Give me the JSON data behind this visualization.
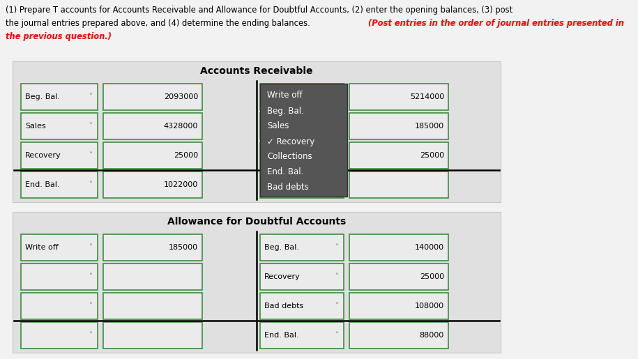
{
  "bg_color": "#f2f2f2",
  "section_bg": "#e0e0e0",
  "box_bg": "#ebebeb",
  "box_border": "#3d8c3d",
  "ar_title": "Accounts Receivable",
  "ada_title": "Allowance for Doubtful Accounts",
  "ar_left_labels": [
    "Beg. Bal.",
    "Sales",
    "Recovery",
    "End. Bal."
  ],
  "ar_left_values": [
    "2093000",
    "4328000",
    "25000",
    "1022000"
  ],
  "ar_right_values": [
    "5214000",
    "185000",
    "25000",
    ""
  ],
  "ada_left_labels": [
    "Write off",
    "",
    "",
    ""
  ],
  "ada_left_values": [
    "185000",
    "",
    "",
    ""
  ],
  "ada_right_labels": [
    "Beg. Bal.",
    "Recovery",
    "Bad debts",
    "End. Bal."
  ],
  "ada_right_values": [
    "140000",
    "25000",
    "108000",
    "88000"
  ],
  "dropdown_items": [
    "Write off",
    "Beg. Bal.",
    "Sales",
    "✓ Recovery",
    "Collections",
    "End. Bal.",
    "Bad debts"
  ],
  "dropdown_bg": "#555555",
  "dropdown_text": "#ffffff",
  "line_color": "#000000",
  "title_line1_black": "(1) Prepare T accounts for Accounts Receivable and Allowance for Doubtful Accounts, (2) enter the opening balances, (3) post",
  "title_line2_black": "the journal entries prepared above, and (4) determine the ending balances. ",
  "title_line2_red": "(Post entries in the order of journal entries presented in",
  "title_line3_red": "the previous question.)"
}
